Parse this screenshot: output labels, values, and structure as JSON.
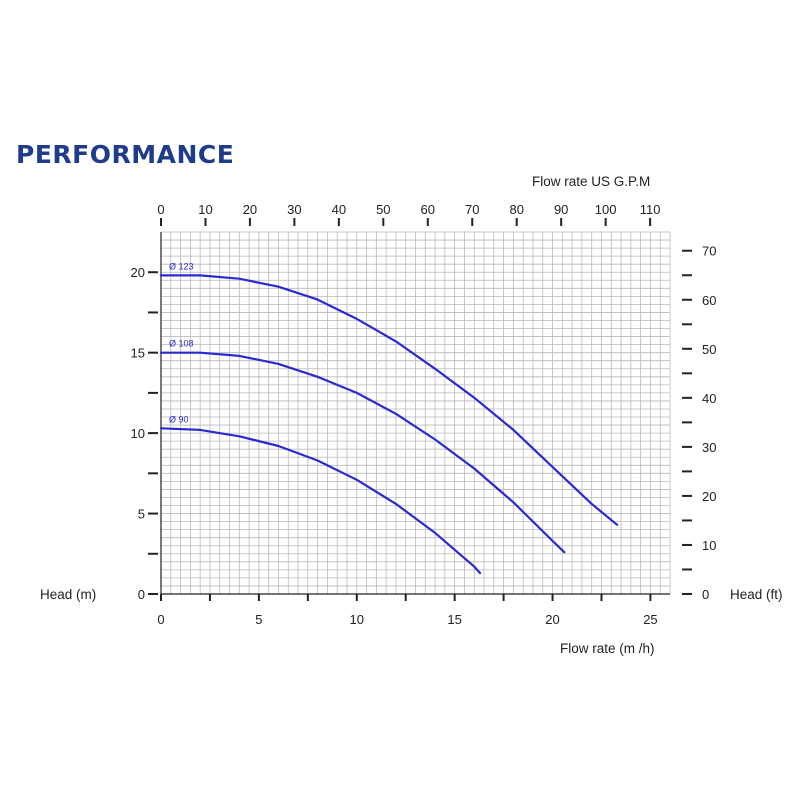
{
  "title": "PERFORMANCE",
  "chart_data": {
    "type": "line",
    "x_bottom_label": "Flow rate  (m /h)",
    "x_top_label": "Flow rate US  G.P.M",
    "y_left_label": "Head (m)",
    "y_right_label": "Head (ft)",
    "x_bottom_range": [
      0,
      26
    ],
    "x_bottom_ticks": [
      0,
      5,
      10,
      15,
      20,
      25
    ],
    "x_top_ticks": [
      0,
      10,
      20,
      30,
      40,
      50,
      60,
      70,
      80,
      90,
      100,
      110
    ],
    "y_left_range": [
      0,
      22.5
    ],
    "y_left_ticks": [
      0,
      5,
      10,
      15,
      20
    ],
    "y_right_ticks": [
      0,
      10,
      20,
      30,
      40,
      50,
      60,
      70
    ],
    "grid": true,
    "colors": {
      "curve": "#2a2ad0",
      "grid": "#b9b9b9",
      "title": "#1f3c8c"
    },
    "series": [
      {
        "name": "Ø 123",
        "x": [
          0,
          2,
          4,
          6,
          8,
          10,
          12,
          14,
          16,
          18,
          20,
          22,
          23.3
        ],
        "y": [
          19.8,
          19.8,
          19.6,
          19.1,
          18.3,
          17.1,
          15.7,
          14.0,
          12.2,
          10.2,
          7.9,
          5.6,
          4.3
        ]
      },
      {
        "name": "Ø 108",
        "x": [
          0,
          2,
          4,
          6,
          8,
          10,
          12,
          14,
          16,
          18,
          20,
          20.6
        ],
        "y": [
          15.0,
          15.0,
          14.8,
          14.3,
          13.5,
          12.5,
          11.2,
          9.6,
          7.8,
          5.7,
          3.3,
          2.6
        ]
      },
      {
        "name": "Ø 90",
        "x": [
          0,
          2,
          4,
          6,
          8,
          10,
          12,
          14,
          16,
          16.3
        ],
        "y": [
          10.3,
          10.2,
          9.8,
          9.2,
          8.3,
          7.1,
          5.6,
          3.8,
          1.7,
          1.3
        ]
      }
    ]
  }
}
